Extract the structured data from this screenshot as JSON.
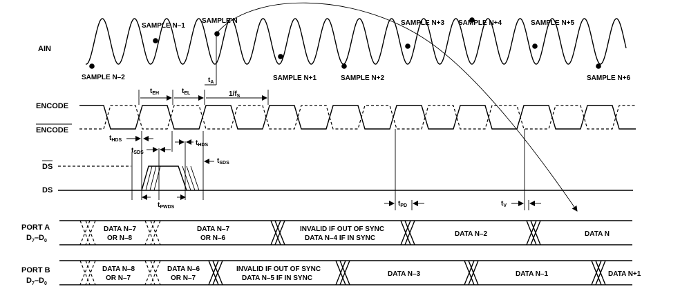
{
  "signals": {
    "ain": "AIN",
    "encode": "ENCODE",
    "encode_bar": "ENCODE",
    "ds_bar": "DS",
    "ds": "DS",
    "port_a": "PORT A",
    "port_a_bits": "D",
    "port_b": "PORT B",
    "port_b_bits": "D"
  },
  "subscripts": {
    "bit_high": "7",
    "bit_low": "0"
  },
  "samples": [
    {
      "label": "SAMPLE N–2"
    },
    {
      "label": "SAMPLE N–1"
    },
    {
      "label": "SAMPLE N"
    },
    {
      "label": "SAMPLE N+1"
    },
    {
      "label": "SAMPLE N+2"
    },
    {
      "label": "SAMPLE N+3"
    },
    {
      "label": "SAMPLE N+4"
    },
    {
      "label": "SAMPLE N+5"
    },
    {
      "label": "SAMPLE N+6"
    }
  ],
  "timing": {
    "t_a": {
      "base": "t",
      "sub": "A"
    },
    "t_eh": {
      "base": "t",
      "sub": "EH"
    },
    "t_el": {
      "base": "t",
      "sub": "EL"
    },
    "one_over_fs": {
      "base": "1/f",
      "sub": "S"
    },
    "t_hds_1": {
      "base": "t",
      "sub": "HDS"
    },
    "t_sds_1": {
      "base": "t",
      "sub": "SDS"
    },
    "t_hds_2": {
      "base": "t",
      "sub": "HDS"
    },
    "t_sds_2": {
      "base": "t",
      "sub": "SDS"
    },
    "t_pwds": {
      "base": "t",
      "sub": "PWDS"
    },
    "t_pd": {
      "base": "t",
      "sub": "PD"
    },
    "t_v": {
      "base": "t",
      "sub": "V"
    }
  },
  "port_a_data": {
    "seg1_l1": "DATA N–7",
    "seg1_l2": "OR N–8",
    "seg2_l1": "DATA N–7",
    "seg2_l2": "OR N–6",
    "seg3_l1": "INVALID IF OUT OF SYNC",
    "seg3_l2": "DATA N–4 IF IN SYNC",
    "seg4": "DATA N–2",
    "seg5": "DATA N"
  },
  "port_b_data": {
    "seg1_l1": "DATA N–8",
    "seg1_l2": "OR N–7",
    "seg2_l1": "DATA N–6",
    "seg2_l2": "OR N–7",
    "seg3_l1": "INVALID IF OUT OF SYNC",
    "seg3_l2": "DATA N–5 IF IN SYNC",
    "seg4": "DATA N–3",
    "seg5": "DATA N–1",
    "seg6": "DATA N+1"
  }
}
